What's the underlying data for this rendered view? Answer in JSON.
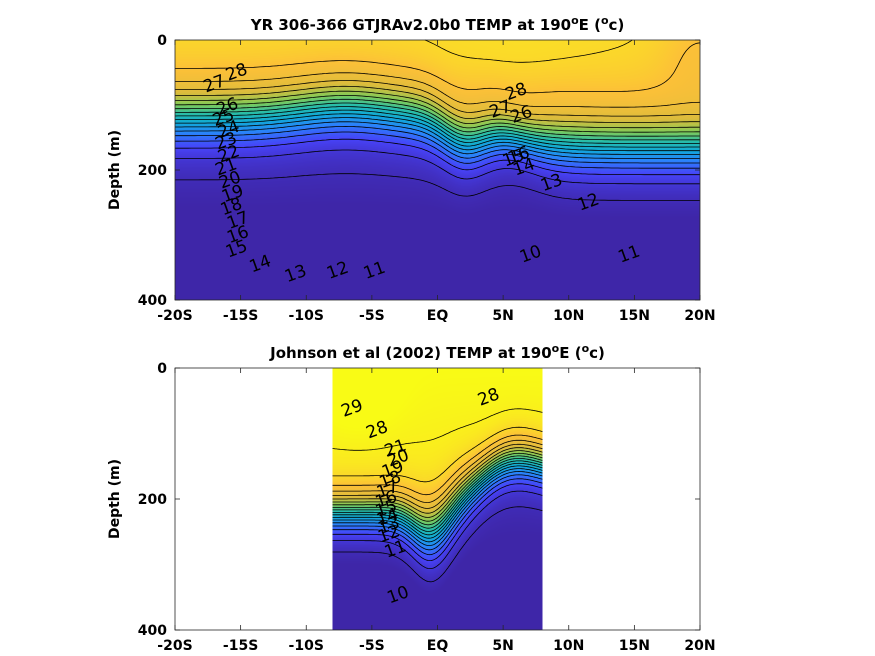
{
  "chart_data": [
    {
      "type": "heatmap",
      "title_main": "YR 306-366 GTJRAv2.0b0 TEMP at 190",
      "title_sup": "o",
      "title_tail": "E (",
      "title_unit_sup": "o",
      "title_unit": "c)",
      "ylabel": "Depth (m)",
      "xlim": [
        -20,
        20
      ],
      "ylim": [
        0,
        400
      ],
      "x_ticks": [
        -20,
        -15,
        -10,
        -5,
        0,
        5,
        10,
        15,
        20
      ],
      "x_tick_labels": [
        "-20S",
        "-15S",
        "-10S",
        "-5S",
        "EQ",
        "5N",
        "10N",
        "15N",
        "20N"
      ],
      "y_ticks": [
        0,
        200,
        400
      ],
      "y_tick_labels": [
        "0",
        "200",
        "400"
      ],
      "data_extent": [
        -20,
        20
      ],
      "colormap": [
        "#3e26a8",
        "#4743f8",
        "#2a84fb",
        "#11a9d8",
        "#27bdaa",
        "#80cb58",
        "#dcbc3c",
        "#fcc038",
        "#f9fb15"
      ],
      "contour_levels": [
        10,
        11,
        12,
        13,
        14,
        15,
        16,
        17,
        18,
        19,
        20,
        21,
        22,
        23,
        24,
        25,
        26,
        27,
        28
      ],
      "contour_labels": [
        {
          "text": "28",
          "x": -15.3,
          "d": 50
        },
        {
          "text": "27",
          "x": -17.0,
          "d": 68
        },
        {
          "text": "26",
          "x": -16.0,
          "d": 103
        },
        {
          "text": "25",
          "x": -16.3,
          "d": 120
        },
        {
          "text": "24",
          "x": -15.9,
          "d": 138
        },
        {
          "text": "23",
          "x": -16.1,
          "d": 156
        },
        {
          "text": "22",
          "x": -15.9,
          "d": 176
        },
        {
          "text": "21",
          "x": -16.1,
          "d": 196
        },
        {
          "text": "20",
          "x": -15.8,
          "d": 216
        },
        {
          "text": "19",
          "x": -15.6,
          "d": 237
        },
        {
          "text": "18",
          "x": -15.7,
          "d": 257
        },
        {
          "text": "17",
          "x": -15.2,
          "d": 278
        },
        {
          "text": "16",
          "x": -15.2,
          "d": 300
        },
        {
          "text": "15",
          "x": -15.3,
          "d": 322
        },
        {
          "text": "14",
          "x": -13.5,
          "d": 345
        },
        {
          "text": "13",
          "x": -10.8,
          "d": 360
        },
        {
          "text": "12",
          "x": -7.6,
          "d": 355
        },
        {
          "text": "11",
          "x": -4.8,
          "d": 355
        },
        {
          "text": "10",
          "x": 7.1,
          "d": 330
        },
        {
          "text": "11",
          "x": 14.6,
          "d": 330
        },
        {
          "text": "12",
          "x": 11.5,
          "d": 250
        },
        {
          "text": "13",
          "x": 8.7,
          "d": 220
        },
        {
          "text": "14",
          "x": 6.6,
          "d": 196
        },
        {
          "text": "28",
          "x": 6.0,
          "d": 80
        },
        {
          "text": "27",
          "x": 4.8,
          "d": 107
        },
        {
          "text": "26",
          "x": 6.4,
          "d": 115
        },
        {
          "text": "16",
          "x": 6.2,
          "d": 178
        },
        {
          "text": "15",
          "x": 5.8,
          "d": 182
        }
      ]
    },
    {
      "type": "heatmap",
      "title_main": "Johnson et al (2002) TEMP at 190",
      "title_sup": "o",
      "title_tail": "E (",
      "title_unit_sup": "o",
      "title_unit": "c)",
      "ylabel": "Depth (m)",
      "xlim": [
        -20,
        20
      ],
      "ylim": [
        0,
        400
      ],
      "x_ticks": [
        -20,
        -15,
        -10,
        -5,
        0,
        5,
        10,
        15,
        20
      ],
      "x_tick_labels": [
        "-20S",
        "-15S",
        "-10S",
        "-5S",
        "EQ",
        "5N",
        "10N",
        "15N",
        "20N"
      ],
      "y_ticks": [
        0,
        200,
        400
      ],
      "y_tick_labels": [
        "0",
        "200",
        "400"
      ],
      "data_extent": [
        -8,
        8
      ],
      "colormap": [
        "#3e26a8",
        "#4743f8",
        "#2a84fb",
        "#11a9d8",
        "#27bdaa",
        "#80cb58",
        "#dcbc3c",
        "#fcc038",
        "#f9fb15"
      ],
      "contour_levels": [
        10,
        11,
        12,
        13,
        14,
        15,
        16,
        17,
        18,
        19,
        20,
        21,
        22,
        23,
        24,
        25,
        26,
        27,
        28,
        29
      ],
      "contour_labels": [
        {
          "text": "29",
          "x": -6.5,
          "d": 62
        },
        {
          "text": "28",
          "x": -4.6,
          "d": 95
        },
        {
          "text": "28",
          "x": 3.9,
          "d": 45
        },
        {
          "text": "21",
          "x": -3.2,
          "d": 123
        },
        {
          "text": "20",
          "x": -3.0,
          "d": 138
        },
        {
          "text": "19",
          "x": -3.4,
          "d": 155
        },
        {
          "text": "18",
          "x": -3.6,
          "d": 171
        },
        {
          "text": "17",
          "x": -3.8,
          "d": 186
        },
        {
          "text": "16",
          "x": -3.9,
          "d": 201
        },
        {
          "text": "15",
          "x": -3.9,
          "d": 215
        },
        {
          "text": "14",
          "x": -3.8,
          "d": 228
        },
        {
          "text": "13",
          "x": -3.7,
          "d": 241
        },
        {
          "text": "12",
          "x": -3.7,
          "d": 254
        },
        {
          "text": "11",
          "x": -3.2,
          "d": 277
        },
        {
          "text": "10",
          "x": -3.0,
          "d": 347
        }
      ]
    }
  ]
}
